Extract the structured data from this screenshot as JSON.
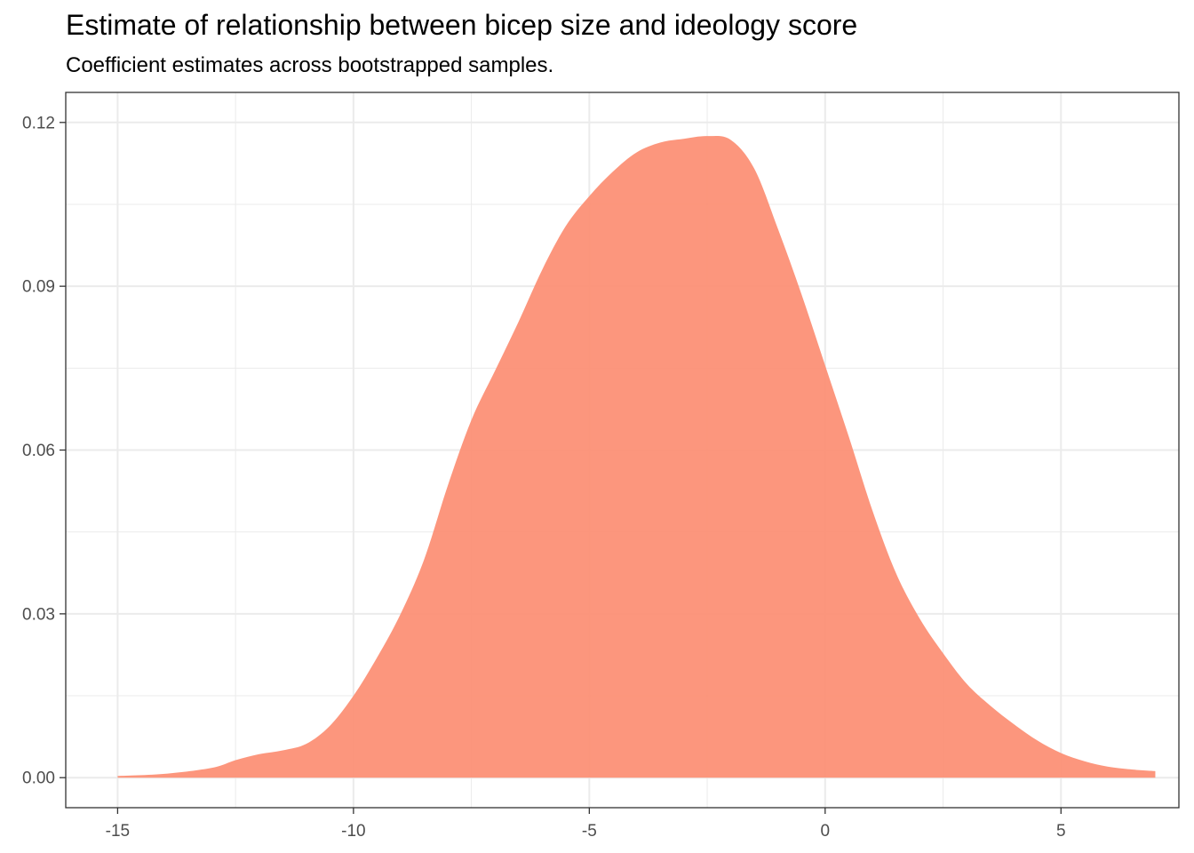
{
  "chart_data": {
    "type": "area",
    "title": "Estimate of relationship between bicep size and ideology score",
    "subtitle": "Coefficient estimates across bootstrapped samples.",
    "xlabel": "",
    "ylabel": "",
    "xlim": [
      -16.1,
      7.5
    ],
    "ylim": [
      -0.0055,
      0.1255
    ],
    "x_ticks": [
      -15,
      -10,
      -5,
      0,
      5
    ],
    "x_tick_labels": [
      "-15",
      "-10",
      "-5",
      "0",
      "5"
    ],
    "y_ticks": [
      0,
      0.03,
      0.06,
      0.09,
      0.12
    ],
    "y_tick_labels": [
      "0.00",
      "0.03",
      "0.06",
      "0.09",
      "0.12"
    ],
    "grid": true,
    "fill_color": "#fc8d72",
    "series": [
      {
        "x": [
          -15,
          -14,
          -13,
          -12.5,
          -12,
          -11.5,
          -11,
          -10.5,
          -10,
          -9.5,
          -9,
          -8.5,
          -8,
          -7.5,
          -7,
          -6.5,
          -6,
          -5.5,
          -5,
          -4.5,
          -4,
          -3.5,
          -3,
          -2.5,
          -2,
          -1.5,
          -1,
          -0.5,
          0,
          0.5,
          1,
          1.5,
          2,
          2.5,
          3,
          3.5,
          4,
          4.5,
          5,
          5.5,
          6,
          6.5,
          7
        ],
        "y": [
          0.0003,
          0.0007,
          0.0018,
          0.0032,
          0.0043,
          0.005,
          0.0062,
          0.0095,
          0.015,
          0.022,
          0.03,
          0.04,
          0.0535,
          0.0655,
          0.0745,
          0.0835,
          0.093,
          0.101,
          0.1065,
          0.111,
          0.1145,
          0.1163,
          0.117,
          0.1175,
          0.1168,
          0.1115,
          0.1005,
          0.0885,
          0.0755,
          0.0625,
          0.049,
          0.0375,
          0.0292,
          0.0228,
          0.0172,
          0.0132,
          0.0098,
          0.0068,
          0.0045,
          0.003,
          0.002,
          0.0015,
          0.0012
        ]
      }
    ]
  }
}
